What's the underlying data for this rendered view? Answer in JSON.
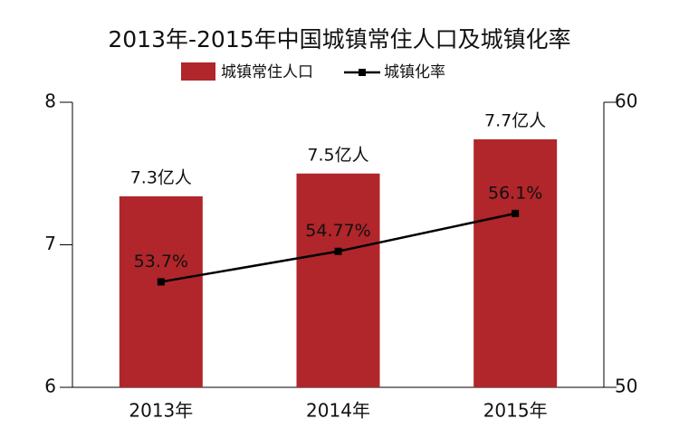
{
  "chart_data": {
    "type": "bar_line",
    "title": "2013年-2015年中国城镇常住人口及城镇化率",
    "categories": [
      "2013年",
      "2014年",
      "2015年"
    ],
    "series": [
      {
        "name": "城镇常住人口",
        "type": "bar",
        "color": "#b0262a",
        "values": [
          7.34,
          7.5,
          7.74
        ],
        "value_labels": [
          "7.3亿人",
          "7.5亿人",
          "7.7亿人"
        ]
      },
      {
        "name": "城镇化率",
        "type": "line",
        "axis": "y2",
        "color": "#000000",
        "values": [
          53.7,
          54.77,
          56.1
        ],
        "value_labels": [
          "53.7%",
          "54.77%",
          "56.1%"
        ]
      }
    ],
    "ylim": [
      6,
      8
    ],
    "yticks": [
      6,
      7,
      8
    ],
    "y2lim": [
      50,
      60
    ],
    "y2ticks": [
      50,
      60
    ],
    "legend": "top"
  }
}
